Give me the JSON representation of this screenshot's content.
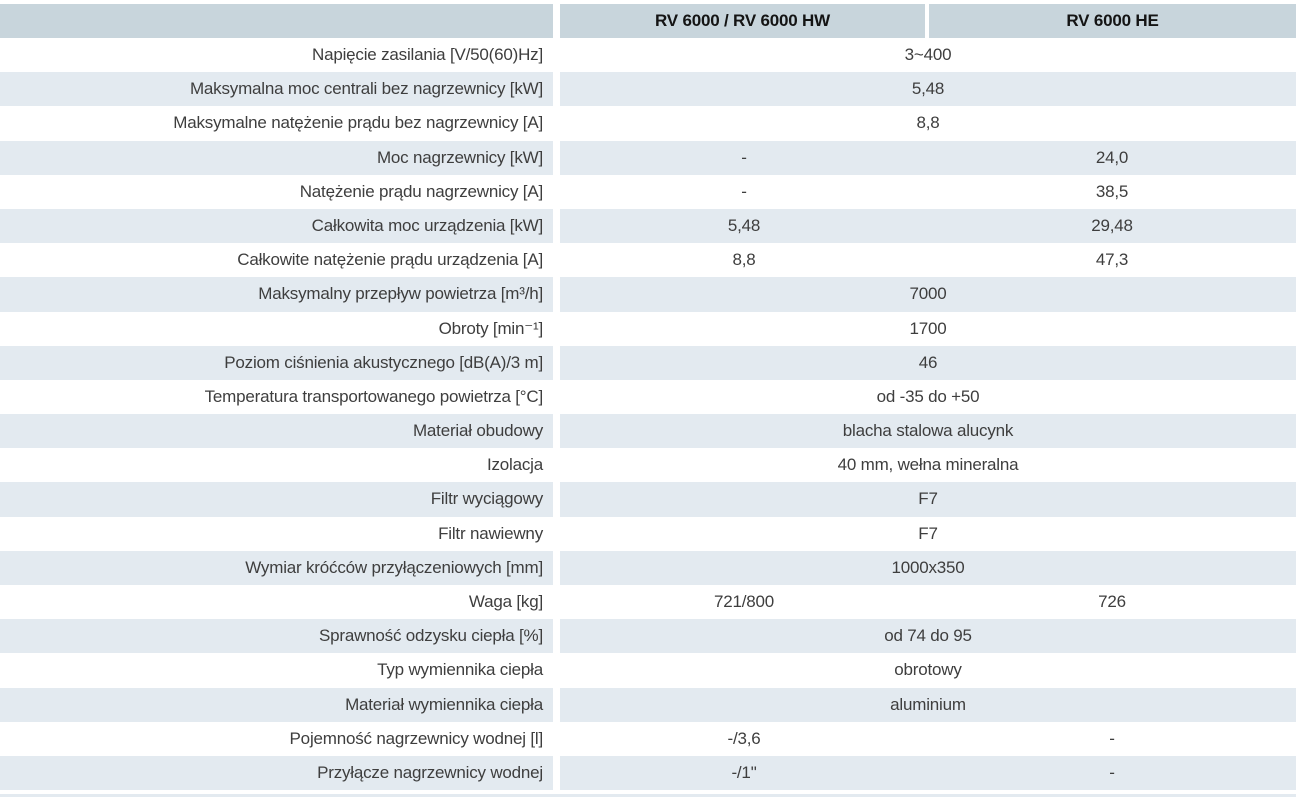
{
  "table": {
    "columns": [
      {
        "label": "RV 6000 / RV 6000 HW"
      },
      {
        "label": "RV 6000 HE"
      }
    ],
    "rows": [
      {
        "label": "Napięcie zasilania [V/50(60)Hz]",
        "span": "3~400"
      },
      {
        "label": "Maksymalna moc centrali bez nagrzewnicy [kW]",
        "span": "5,48"
      },
      {
        "label": "Maksymalne natężenie prądu bez nagrzewnicy [A]",
        "span": "8,8"
      },
      {
        "label": "Moc nagrzewnicy [kW]",
        "col1": "-",
        "col2": "24,0"
      },
      {
        "label": "Natężenie prądu nagrzewnicy [A]",
        "col1": "-",
        "col2": "38,5"
      },
      {
        "label": "Całkowita moc urządzenia [kW]",
        "col1": "5,48",
        "col2": "29,48"
      },
      {
        "label": "Całkowite natężenie prądu urządzenia [A]",
        "col1": "8,8",
        "col2": "47,3"
      },
      {
        "label": "Maksymalny przepływ powietrza [m³/h]",
        "span": "7000"
      },
      {
        "label": "Obroty [min⁻¹]",
        "span": "1700"
      },
      {
        "label": "Poziom ciśnienia akustycznego  [dB(A)/3 m]",
        "span": "46"
      },
      {
        "label": "Temperatura transportowanego powietrza [°C]",
        "span": "od -35 do +50"
      },
      {
        "label": "Materiał obudowy",
        "span": "blacha stalowa alucynk"
      },
      {
        "label": "Izolacja",
        "span": "40 mm, wełna mineralna"
      },
      {
        "label": "Filtr wyciągowy",
        "span": "F7"
      },
      {
        "label": "Filtr nawiewny",
        "span": "F7"
      },
      {
        "label": "Wymiar króćców przyłączeniowych [mm]",
        "span": "1000x350"
      },
      {
        "label": "Waga [kg]",
        "col1": "721/800",
        "col2": "726"
      },
      {
        "label": "Sprawność odzysku ciepła [%]",
        "span": "od 74 do 95"
      },
      {
        "label": "Typ wymiennika ciepła",
        "span": "obrotowy"
      },
      {
        "label": "Materiał wymiennika ciepła",
        "span": "aluminium"
      },
      {
        "label": "Pojemność nagrzewnicy wodnej [l]",
        "col1": "-/3,6",
        "col2": "-"
      },
      {
        "label": "Przyłącze nagrzewnicy wodnej",
        "col1": "-/1\"",
        "col2": "-"
      }
    ],
    "colors": {
      "header_bg": "#c8d5dc",
      "stripe_bg": "#e3eaf0",
      "text": "#3e3e3e",
      "header_text": "#141414"
    }
  }
}
